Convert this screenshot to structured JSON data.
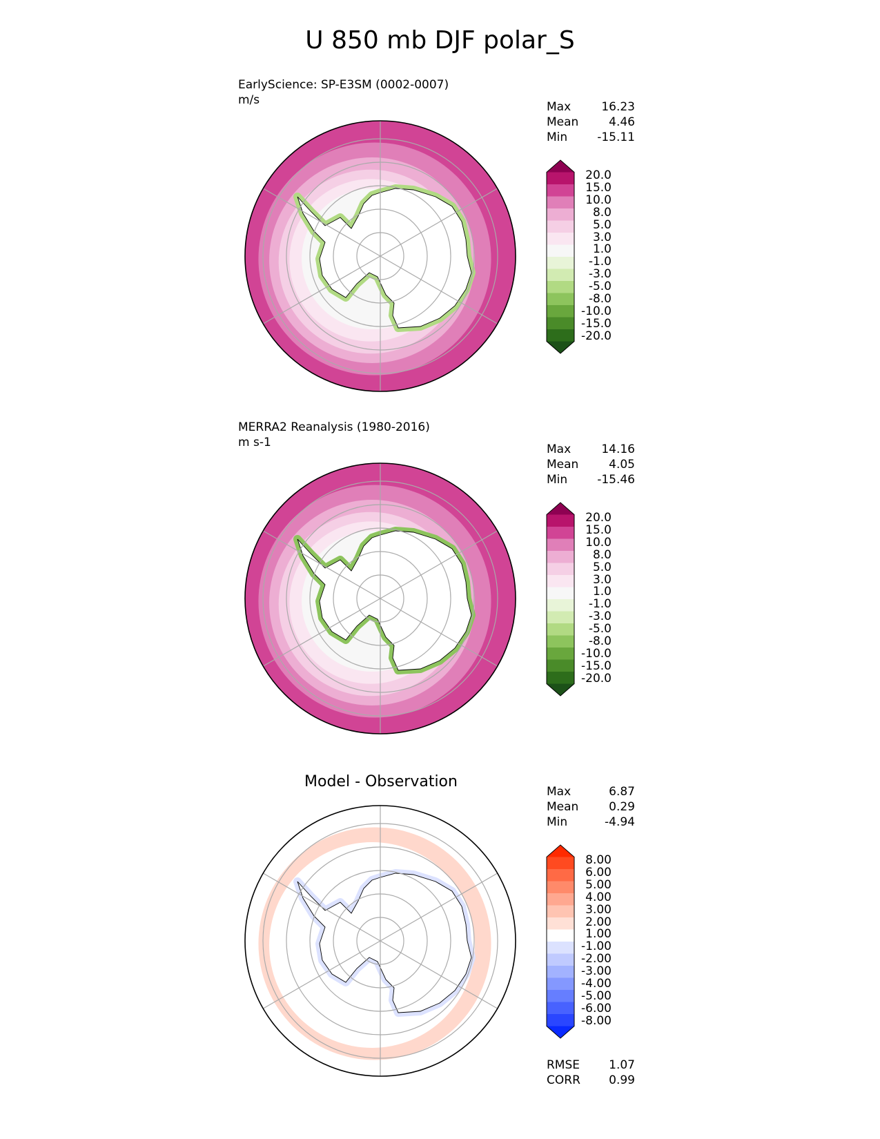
{
  "title": "U 850 mb DJF polar_S",
  "panels": [
    {
      "id": "test",
      "title_line1": "EarlyScience: SP-E3SM (0002-0007)",
      "title_line2": "m/s",
      "stats": [
        {
          "label": "Max",
          "value": "16.23"
        },
        {
          "label": "Mean",
          "value": "4.46"
        },
        {
          "label": "Min",
          "value": "-15.11"
        }
      ],
      "colorbar": {
        "levels": [
          "20.0",
          "15.0",
          "10.0",
          "8.0",
          "5.0",
          "3.0",
          "1.0",
          "-1.0",
          "-3.0",
          "-5.0",
          "-8.0",
          "-10.0",
          "-15.0",
          "-20.0"
        ],
        "colors": [
          "#8e0152",
          "#b8146c",
          "#d14495",
          "#e07fb8",
          "#edaed3",
          "#f5cfe5",
          "#fae6f1",
          "#f7f7f7",
          "#e8f4d8",
          "#d2ebb2",
          "#b1da83",
          "#8dc45d",
          "#69a73d",
          "#4a8b29",
          "#2d6d1b",
          "#1c5118"
        ]
      },
      "field": {
        "outer": "#d14495",
        "ring2": "#e07fb8",
        "ring3": "#edaed3",
        "ring4": "#f5cfe5",
        "ring5": "#fae6f1",
        "inner": "#f7f7f7",
        "coast_band": "#b1da83"
      }
    },
    {
      "id": "ref",
      "title_line1": "MERRA2 Reanalysis (1980-2016)",
      "title_line2": "m s-1",
      "stats": [
        {
          "label": "Max",
          "value": "14.16"
        },
        {
          "label": "Mean",
          "value": "4.05"
        },
        {
          "label": "Min",
          "value": "-15.46"
        }
      ],
      "colorbar": {
        "levels": [
          "20.0",
          "15.0",
          "10.0",
          "8.0",
          "5.0",
          "3.0",
          "1.0",
          "-1.0",
          "-3.0",
          "-5.0",
          "-8.0",
          "-10.0",
          "-15.0",
          "-20.0"
        ],
        "colors": [
          "#8e0152",
          "#b8146c",
          "#d14495",
          "#e07fb8",
          "#edaed3",
          "#f5cfe5",
          "#fae6f1",
          "#f7f7f7",
          "#e8f4d8",
          "#d2ebb2",
          "#b1da83",
          "#8dc45d",
          "#69a73d",
          "#4a8b29",
          "#2d6d1b",
          "#1c5118"
        ]
      },
      "field": {
        "outer": "#d14495",
        "ring2": "#e07fb8",
        "ring3": "#edaed3",
        "ring4": "#f5cfe5",
        "ring5": "#fae6f1",
        "inner": "#f7f7f7",
        "coast_band": "#8dc45d"
      }
    },
    {
      "id": "diff",
      "title_center": "Model - Observation",
      "stats": [
        {
          "label": "Max",
          "value": "6.87"
        },
        {
          "label": "Mean",
          "value": "0.29"
        },
        {
          "label": "Min",
          "value": "-4.94"
        }
      ],
      "colorbar": {
        "levels": [
          "8.00",
          "6.00",
          "5.00",
          "4.00",
          "3.00",
          "2.00",
          "1.00",
          "-1.00",
          "-2.00",
          "-3.00",
          "-4.00",
          "-5.00",
          "-6.00",
          "-8.00"
        ],
        "colors": [
          "#ff2a00",
          "#ff4a20",
          "#ff6a45",
          "#ff8a6a",
          "#ffa890",
          "#ffc4b2",
          "#ffe0d6",
          "#ffffff",
          "#dce2ff",
          "#c0caff",
          "#a2b2ff",
          "#8498ff",
          "#667eff",
          "#4862ff",
          "#2a46ff",
          "#0a2aff"
        ]
      },
      "field": {
        "outer": "#ffffff",
        "ring2": "#ffd8cc",
        "ring3": "#ffffff",
        "ring4": "#ffffff",
        "ring5": "#ffffff",
        "inner": "#ffffff",
        "coast_band": "#dce2ff"
      }
    }
  ],
  "footer_stats": [
    {
      "label": "RMSE",
      "value": "1.07"
    },
    {
      "label": "CORR",
      "value": "0.99"
    }
  ]
}
